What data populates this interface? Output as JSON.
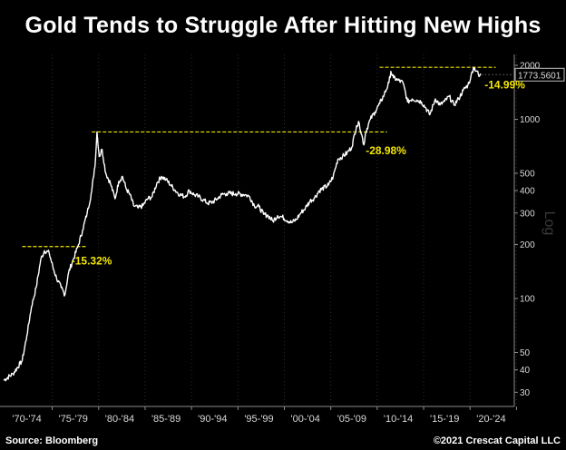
{
  "chart_data": {
    "type": "line",
    "title": "Gold Tends to Struggle After Hitting New Highs",
    "yscale": "log",
    "ylabel": "Log",
    "ylim": [
      25,
      2300
    ],
    "xlim": [
      1970,
      2025
    ],
    "y_ticks": [
      30,
      40,
      50,
      100,
      200,
      300,
      400,
      500,
      1000,
      2000
    ],
    "y_tick_labels": [
      "30",
      "40",
      "50",
      "100",
      "200",
      "300",
      "400",
      "500",
      "1000",
      "2000"
    ],
    "x_tick_labels": [
      "'70-'74",
      "'75-'79",
      "'80-'84",
      "'85-'89",
      "'90-'94",
      "'95-'99",
      "'00-'04",
      "'05-'09",
      "'10-'14",
      "'15-'19",
      "'20-'24"
    ],
    "x_tick_positions": [
      1972.5,
      1977.5,
      1982.5,
      1987.5,
      1992.5,
      1997.5,
      2002.5,
      2007.5,
      2012.5,
      2017.5,
      2022.5
    ],
    "last_value_label": "1773.5601",
    "last_value": 1773.56,
    "series": [
      {
        "color": "#ffffff",
        "x": [
          1970.0,
          1971.0,
          1972.0,
          1972.5,
          1973.0,
          1973.5,
          1974.0,
          1974.4,
          1974.9,
          1975.3,
          1975.7,
          1976.2,
          1976.6,
          1977.0,
          1977.5,
          1978.0,
          1978.5,
          1979.0,
          1979.5,
          1979.9,
          1980.05,
          1980.3,
          1980.6,
          1981.0,
          1981.5,
          1982.0,
          1982.4,
          1982.8,
          1983.2,
          1983.6,
          1984.0,
          1984.5,
          1985.0,
          1985.5,
          1986.0,
          1986.5,
          1987.0,
          1987.5,
          1988.0,
          1988.5,
          1989.0,
          1989.5,
          1990.0,
          1990.5,
          1991.0,
          1991.5,
          1992.0,
          1992.5,
          1993.0,
          1993.5,
          1994.0,
          1995.0,
          1996.0,
          1996.5,
          1997.0,
          1997.5,
          1998.0,
          1998.5,
          1999.0,
          1999.5,
          2000.0,
          2001.0,
          2001.5,
          2002.0,
          2002.5,
          2003.0,
          2003.5,
          2004.0,
          2005.0,
          2005.5,
          2006.0,
          2006.5,
          2007.0,
          2007.5,
          2008.0,
          2008.3,
          2008.8,
          2009.0,
          2009.5,
          2010.0,
          2010.5,
          2011.0,
          2011.5,
          2011.7,
          2012.0,
          2012.5,
          2013.0,
          2013.3,
          2013.5,
          2014.0,
          2014.5,
          2015.0,
          2015.5,
          2015.9,
          2016.5,
          2017.0,
          2017.5,
          2018.0,
          2018.5,
          2019.0,
          2019.5,
          2020.0,
          2020.3,
          2020.6,
          2021.0,
          2021.2,
          2021.4
        ],
        "y": [
          35,
          38,
          45,
          62,
          90,
          115,
          165,
          185,
          180,
          150,
          130,
          115,
          105,
          140,
          165,
          195,
          240,
          300,
          400,
          600,
          850,
          620,
          680,
          500,
          440,
          360,
          450,
          480,
          410,
          380,
          330,
          320,
          330,
          360,
          370,
          440,
          480,
          460,
          430,
          400,
          380,
          370,
          400,
          380,
          370,
          355,
          340,
          345,
          360,
          380,
          385,
          385,
          380,
          370,
          330,
          325,
          295,
          290,
          270,
          290,
          285,
          265,
          275,
          300,
          320,
          350,
          365,
          400,
          430,
          480,
          600,
          620,
          650,
          700,
          920,
          950,
          720,
          850,
          1000,
          1100,
          1220,
          1380,
          1600,
          1850,
          1700,
          1650,
          1600,
          1400,
          1250,
          1300,
          1280,
          1250,
          1150,
          1060,
          1300,
          1200,
          1260,
          1340,
          1200,
          1300,
          1450,
          1550,
          1700,
          1950,
          1850,
          1730,
          1773.56
        ]
      }
    ],
    "reference_lines": [
      {
        "y": 195,
        "x_start": 1972.0,
        "x_end": 1979.0,
        "color": "#f2e600"
      },
      {
        "y": 850,
        "x_start": 1979.5,
        "x_end": 2011.3,
        "color": "#f2e600"
      },
      {
        "y": 1950,
        "x_start": 2010.5,
        "x_end": 2023.0,
        "color": "#f2e600"
      }
    ],
    "annotations": [
      {
        "text": "-15.32%",
        "x": 1977.3,
        "y": 155,
        "color": "#f2e600"
      },
      {
        "text": "-28.98%",
        "x": 2009.0,
        "y": 640,
        "color": "#f2e600"
      },
      {
        "text": "-14.99%",
        "x": 2021.8,
        "y": 1490,
        "color": "#f2e600"
      }
    ]
  },
  "footer": {
    "source": "Source: Bloomberg",
    "copyright": "©2021 Crescat Capital LLC"
  }
}
